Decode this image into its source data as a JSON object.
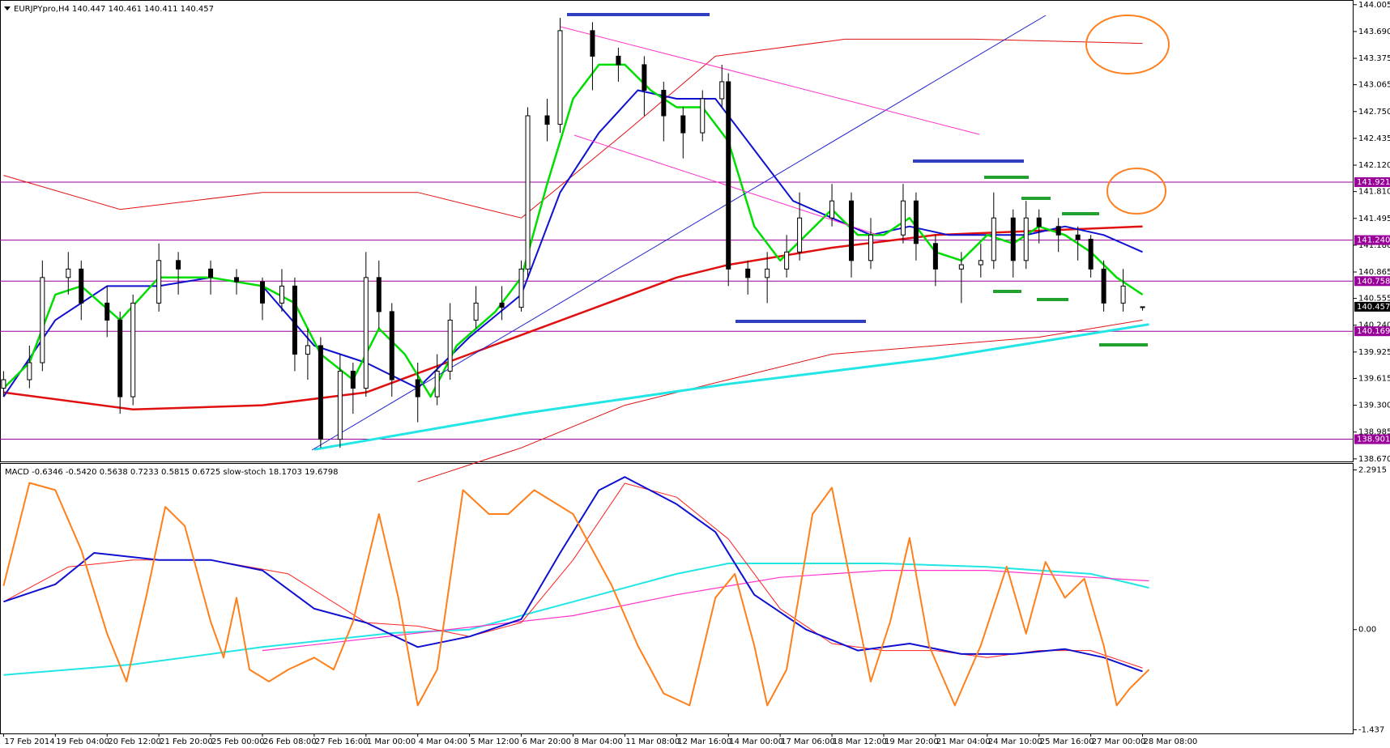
{
  "chart_data": [
    {
      "type": "candlestick",
      "title": "EURJPYpro,H4  140.447 140.461 140.411 140.457",
      "xlim": [
        -0.55,
        208.6
      ],
      "ylim": [
        138.64,
        144.06
      ],
      "yticks": [
        144.005,
        {
          "value": 143.69,
          "label": "143.690"
        },
        143.375,
        143.065,
        {
          "value": 142.75,
          "label": "142.750"
        },
        142.435,
        {
          "value": 142.12,
          "label": "142.120"
        },
        {
          "value": 141.81,
          "label": "141.810"
        },
        141.495,
        {
          "value": 141.18,
          "label": "141.180"
        },
        140.865,
        140.555,
        {
          "value": 140.24,
          "label": "140.240"
        },
        139.925,
        139.615,
        {
          "value": 139.3,
          "label": "139.300"
        },
        138.985,
        {
          "value": 138.67,
          "label": "138.670"
        }
      ],
      "levels": [
        141.921,
        {
          "value": 141.24,
          "label": "141.240"
        },
        140.758,
        140.169,
        138.901
      ],
      "level_color": "#990099",
      "last_price": 140.457,
      "up_color": "#ffffff",
      "down_color": "#000000",
      "candles": {
        "x": [
          0,
          4,
          6,
          10,
          12,
          16,
          18,
          20,
          24,
          27,
          32,
          36,
          40,
          43,
          45,
          47,
          49,
          52,
          54,
          56,
          58,
          60,
          64,
          67,
          69,
          73,
          77,
          80,
          81,
          84,
          86,
          91,
          95,
          99,
          102,
          105,
          108,
          111,
          112,
          115,
          118,
          121,
          123,
          128,
          131,
          134,
          139,
          141,
          144,
          148,
          151,
          153,
          156,
          158,
          160,
          163,
          166,
          168,
          170,
          173,
          176
        ],
        "open": [
          139.5,
          139.6,
          139.8,
          140.8,
          140.9,
          140.5,
          140.3,
          139.4,
          140.5,
          141.0,
          140.9,
          140.8,
          140.75,
          140.5,
          140.7,
          139.9,
          140.0,
          138.9,
          139.7,
          139.5,
          140.8,
          140.4,
          139.6,
          139.4,
          139.7,
          140.3,
          140.5,
          140.45,
          140.9,
          142.7,
          142.6,
          143.7,
          143.4,
          143.3,
          143.0,
          142.7,
          142.5,
          142.9,
          143.1,
          140.9,
          140.8,
          140.9,
          141.1,
          141.5,
          141.7,
          141.0,
          141.3,
          141.7,
          141.2,
          140.9,
          140.95,
          141.0,
          141.5,
          141.0,
          141.5,
          141.4,
          141.3,
          141.25,
          140.9,
          140.5,
          140.447
        ],
        "high": [
          139.7,
          140.0,
          141.0,
          141.1,
          141.0,
          140.7,
          140.4,
          140.6,
          141.2,
          141.1,
          141.0,
          140.9,
          140.8,
          140.9,
          140.8,
          140.2,
          140.1,
          139.9,
          139.8,
          141.1,
          141.0,
          140.5,
          139.8,
          139.9,
          140.5,
          140.7,
          140.7,
          141.0,
          142.8,
          142.9,
          143.85,
          143.8,
          143.5,
          143.4,
          143.1,
          142.8,
          143.0,
          143.3,
          143.2,
          141.0,
          141.1,
          141.3,
          141.8,
          141.9,
          141.8,
          141.5,
          141.9,
          141.8,
          141.3,
          141.1,
          141.2,
          141.8,
          141.6,
          141.7,
          141.6,
          141.5,
          141.4,
          141.3,
          141.0,
          140.9,
          140.461
        ],
        "low": [
          139.4,
          139.5,
          139.7,
          140.6,
          140.3,
          140.1,
          139.2,
          139.3,
          140.4,
          140.6,
          140.6,
          140.6,
          140.3,
          140.4,
          139.7,
          139.6,
          138.8,
          138.8,
          139.2,
          139.4,
          140.2,
          139.4,
          139.1,
          139.3,
          139.6,
          140.2,
          140.3,
          140.4,
          140.8,
          142.4,
          142.5,
          143.0,
          143.1,
          142.7,
          142.4,
          142.2,
          142.4,
          142.8,
          140.7,
          140.6,
          140.5,
          140.8,
          141.0,
          141.4,
          140.8,
          140.9,
          141.2,
          141.0,
          140.7,
          140.5,
          140.8,
          140.9,
          140.8,
          140.9,
          141.2,
          141.1,
          141.0,
          140.8,
          140.4,
          140.4,
          140.411
        ],
        "close": [
          139.6,
          139.8,
          140.8,
          140.9,
          140.5,
          140.3,
          139.4,
          140.5,
          141.0,
          140.9,
          140.8,
          140.75,
          140.5,
          140.7,
          139.9,
          140.0,
          138.9,
          139.7,
          139.5,
          140.8,
          140.4,
          139.6,
          139.4,
          139.7,
          140.3,
          140.5,
          140.45,
          140.9,
          142.7,
          142.6,
          143.7,
          143.4,
          143.3,
          143.0,
          142.7,
          142.5,
          142.9,
          143.1,
          140.9,
          140.8,
          140.9,
          141.1,
          141.5,
          141.7,
          141.0,
          141.3,
          141.7,
          141.2,
          140.9,
          140.95,
          141.0,
          141.5,
          141.0,
          141.5,
          141.4,
          141.3,
          141.25,
          140.9,
          140.5,
          140.7,
          140.457
        ]
      },
      "series": [
        {
          "color": "#e01010",
          "width": 1,
          "x": [
            0,
            18,
            40,
            64,
            80,
            96,
            110,
            130,
            150,
            176
          ],
          "values": [
            142.0,
            141.6,
            141.8,
            141.8,
            141.5,
            142.5,
            143.4,
            143.6,
            143.6,
            143.55
          ]
        },
        {
          "color": "#e01010",
          "width": 1,
          "x": [
            64,
            80,
            96,
            112,
            128,
            144,
            160,
            176
          ],
          "values": [
            138.4,
            138.8,
            139.3,
            139.6,
            139.9,
            140.0,
            140.1,
            140.3
          ]
        },
        {
          "color": "#e01010",
          "width": 2.5,
          "x": [
            0,
            20,
            40,
            56,
            72,
            88,
            104,
            112,
            128,
            144,
            160,
            176
          ],
          "values": [
            139.45,
            139.25,
            139.3,
            139.45,
            139.9,
            140.35,
            140.8,
            140.95,
            141.15,
            141.3,
            141.35,
            141.4
          ]
        },
        {
          "color": "#22e5e5",
          "width": 3,
          "x": [
            48,
            80,
            112,
            144,
            177
          ],
          "values": [
            138.78,
            139.2,
            139.55,
            139.85,
            140.25
          ]
        },
        {
          "color": "#1010d0",
          "width": 2,
          "x": [
            0,
            8,
            16,
            24,
            32,
            40,
            48,
            56,
            64,
            72,
            80,
            86,
            92,
            98,
            104,
            110,
            116,
            122,
            128,
            134,
            140,
            146,
            152,
            158,
            164,
            170,
            176
          ],
          "values": [
            139.4,
            140.3,
            140.7,
            140.7,
            140.8,
            140.7,
            140.0,
            139.8,
            139.5,
            140.1,
            140.6,
            141.8,
            142.5,
            143.0,
            142.9,
            142.9,
            142.3,
            141.7,
            141.5,
            141.3,
            141.4,
            141.3,
            141.3,
            141.3,
            141.4,
            141.3,
            141.1
          ]
        },
        {
          "color": "#00dd00",
          "width": 2.5,
          "x": [
            0,
            4,
            8,
            12,
            18,
            24,
            32,
            40,
            45,
            49,
            54,
            58,
            62,
            66,
            70,
            76,
            80,
            84,
            88,
            92,
            96,
            100,
            104,
            108,
            112,
            116,
            120,
            124,
            128,
            132,
            136,
            140,
            144,
            148,
            152,
            156,
            160,
            164,
            168,
            172,
            176
          ],
          "values": [
            139.5,
            139.8,
            140.6,
            140.7,
            140.3,
            140.8,
            140.8,
            140.7,
            140.5,
            139.9,
            139.6,
            140.2,
            139.9,
            139.4,
            140.0,
            140.4,
            140.8,
            141.9,
            142.9,
            143.3,
            143.3,
            143.0,
            142.8,
            142.8,
            142.4,
            141.4,
            141.0,
            141.3,
            141.6,
            141.3,
            141.3,
            141.5,
            141.1,
            141.0,
            141.3,
            141.2,
            141.4,
            141.3,
            141.1,
            140.8,
            140.6
          ]
        }
      ]
    },
    {
      "type": "line",
      "title": "MACD -0.6346 -0.5420 0.5638 0.7233 0.5815 0.6725  slow-stoch 18.1703 19.6798",
      "xlim": [
        -0.55,
        208.6
      ],
      "ylim": [
        -1.49,
        2.39
      ],
      "y2lim": [
        -6.7,
        106.3
      ],
      "yticks": [
        2.2915,
        {
          "value": 0,
          "label": "0.00"
        },
        -1.437
      ],
      "xticks": [
        {
          "value": 0,
          "label": "17 Feb 2014"
        },
        {
          "value": 8,
          "label": "19 Feb 04:00"
        },
        {
          "value": 16,
          "label": "20 Feb 12:00"
        },
        {
          "value": 24,
          "label": "21 Feb 20:00"
        },
        {
          "value": 32,
          "label": "25 Feb 00:00"
        },
        {
          "value": 40,
          "label": "26 Feb 08:00"
        },
        {
          "value": 48,
          "label": "27 Feb 16:00"
        },
        {
          "value": 56,
          "label": "1 Mar 00:00"
        },
        {
          "value": 64,
          "label": "4 Mar 04:00"
        },
        {
          "value": 72,
          "label": "5 Mar 12:00"
        },
        {
          "value": 80,
          "label": "6 Mar 20:00"
        },
        {
          "value": 88,
          "label": "8 Mar 04:00"
        },
        {
          "value": 96,
          "label": "11 Mar 08:00"
        },
        {
          "value": 104,
          "label": "12 Mar 16:00"
        },
        {
          "value": 112,
          "label": "14 Mar 00:00"
        },
        {
          "value": 120,
          "label": "17 Mar 06:00"
        },
        {
          "value": 128,
          "label": "18 Mar 12:00"
        },
        {
          "value": 136,
          "label": "19 Mar 20:00"
        },
        {
          "value": 144,
          "label": "21 Mar 04:00"
        },
        {
          "value": 152,
          "label": "24 Mar 10:00"
        },
        {
          "value": 160,
          "label": "25 Mar 16:00"
        },
        {
          "value": 168,
          "label": "27 Mar 00:00"
        },
        {
          "value": 176,
          "label": "28 Mar 08:00"
        }
      ],
      "series": [
        {
          "color": "#22e5e5",
          "width": 2,
          "x": [
            0,
            20,
            40,
            60,
            72,
            88,
            104,
            112,
            136,
            152,
            168,
            177
          ],
          "values": [
            -0.65,
            -0.5,
            -0.25,
            -0.05,
            0.0,
            0.4,
            0.8,
            0.95,
            0.95,
            0.9,
            0.8,
            0.6
          ]
        },
        {
          "color": "#ff33cc",
          "width": 1.2,
          "x": [
            40,
            64,
            88,
            104,
            120,
            136,
            152,
            168,
            177
          ],
          "values": [
            -0.3,
            -0.05,
            0.2,
            0.5,
            0.75,
            0.85,
            0.85,
            0.75,
            0.7
          ]
        },
        {
          "color": "#ff2020",
          "width": 1,
          "x": [
            0,
            10,
            20,
            32,
            44,
            56,
            64,
            72,
            80,
            88,
            96,
            104,
            112,
            120,
            128,
            136,
            144,
            152,
            160,
            168,
            176
          ],
          "values": [
            0.4,
            0.9,
            1.0,
            1.0,
            0.8,
            0.1,
            0.05,
            -0.1,
            0.1,
            1.0,
            2.1,
            1.9,
            1.3,
            0.3,
            -0.2,
            -0.3,
            -0.3,
            -0.4,
            -0.3,
            -0.3,
            -0.55
          ]
        },
        {
          "color": "#1010d0",
          "width": 2,
          "x": [
            0,
            8,
            14,
            24,
            32,
            40,
            48,
            56,
            64,
            72,
            80,
            86,
            92,
            96,
            104,
            110,
            116,
            124,
            132,
            140,
            148,
            156,
            164,
            170,
            176
          ],
          "values": [
            0.4,
            0.65,
            1.1,
            1.0,
            1.0,
            0.85,
            0.3,
            0.1,
            -0.25,
            -0.1,
            0.15,
            1.1,
            2.0,
            2.19,
            1.8,
            1.4,
            0.5,
            0.0,
            -0.3,
            -0.2,
            -0.35,
            -0.35,
            -0.28,
            -0.4,
            -0.6
          ]
        },
        {
          "color": "#ff7f1a",
          "width": 2,
          "axis": "y2",
          "x": [
            0,
            4,
            8,
            12,
            16,
            19,
            22,
            25,
            28,
            32,
            34,
            36,
            38,
            41,
            44,
            48,
            51,
            54,
            58,
            61,
            64,
            67,
            71,
            75,
            78,
            82,
            88,
            94,
            98,
            102,
            106,
            110,
            113,
            116,
            118,
            121,
            125,
            128,
            131,
            134,
            137,
            140,
            143,
            147,
            151,
            155,
            158,
            161,
            164,
            167,
            170,
            172,
            174,
            177
          ],
          "values": [
            55,
            98,
            95,
            70,
            35,
            15,
            50,
            88,
            80,
            40,
            25,
            50,
            20,
            15,
            20,
            25,
            20,
            40,
            85,
            50,
            5,
            20,
            95,
            85,
            85,
            95,
            85,
            55,
            30,
            10,
            5,
            50,
            60,
            30,
            5,
            20,
            85,
            96,
            55,
            15,
            40,
            75,
            30,
            5,
            30,
            63,
            35,
            65,
            50,
            58,
            30,
            5,
            12,
            20
          ]
        }
      ]
    }
  ]
}
